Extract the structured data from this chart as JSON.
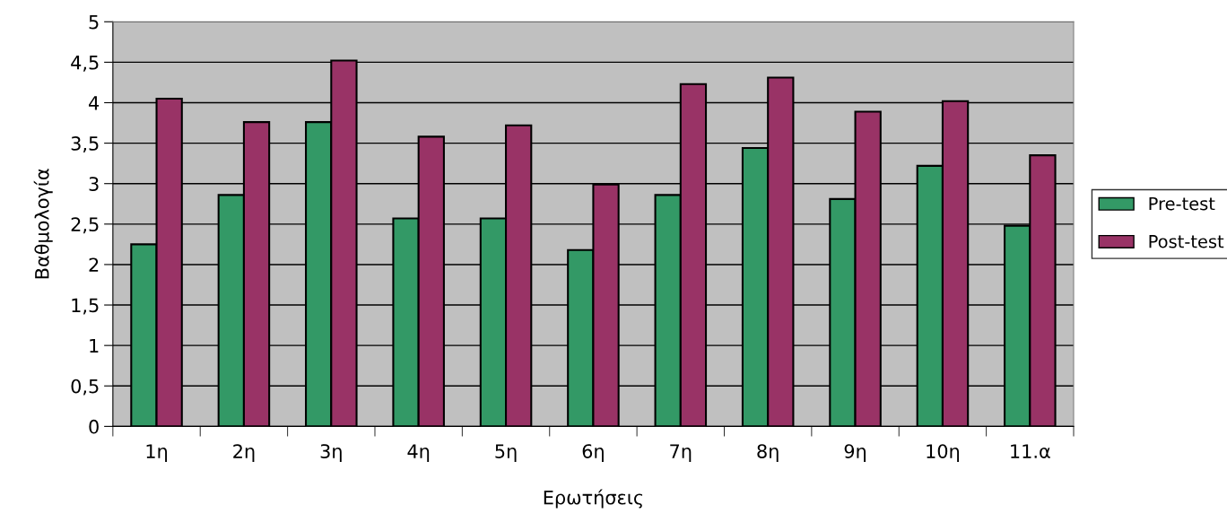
{
  "chart_data": {
    "type": "bar",
    "xlabel": "Ερωτήσεις",
    "ylabel": "Βαθμολογία",
    "categories": [
      "1η",
      "2η",
      "3η",
      "4η",
      "5η",
      "6η",
      "7η",
      "8η",
      "9η",
      "10η",
      "11.α"
    ],
    "series": [
      {
        "name": "Pre-test",
        "color": "#339966",
        "values": [
          2.25,
          2.86,
          3.76,
          2.57,
          2.57,
          2.18,
          2.86,
          3.44,
          2.81,
          3.22,
          2.48
        ]
      },
      {
        "name": "Post-test",
        "color": "#993366",
        "values": [
          4.05,
          3.76,
          4.52,
          3.58,
          3.72,
          2.99,
          4.23,
          4.31,
          3.89,
          4.02,
          3.35
        ]
      }
    ],
    "ylim": [
      0,
      5
    ],
    "yticks": [
      0,
      {
        "value": 0.5,
        "label": "0,5"
      },
      1,
      {
        "value": 1.5,
        "label": "1,5"
      },
      2,
      {
        "value": 2.5,
        "label": "2,5"
      },
      3,
      {
        "value": 3.5,
        "label": "3,5"
      },
      4,
      {
        "value": 4.5,
        "label": "4,5"
      },
      5
    ],
    "grid": "y",
    "legend": "right"
  }
}
